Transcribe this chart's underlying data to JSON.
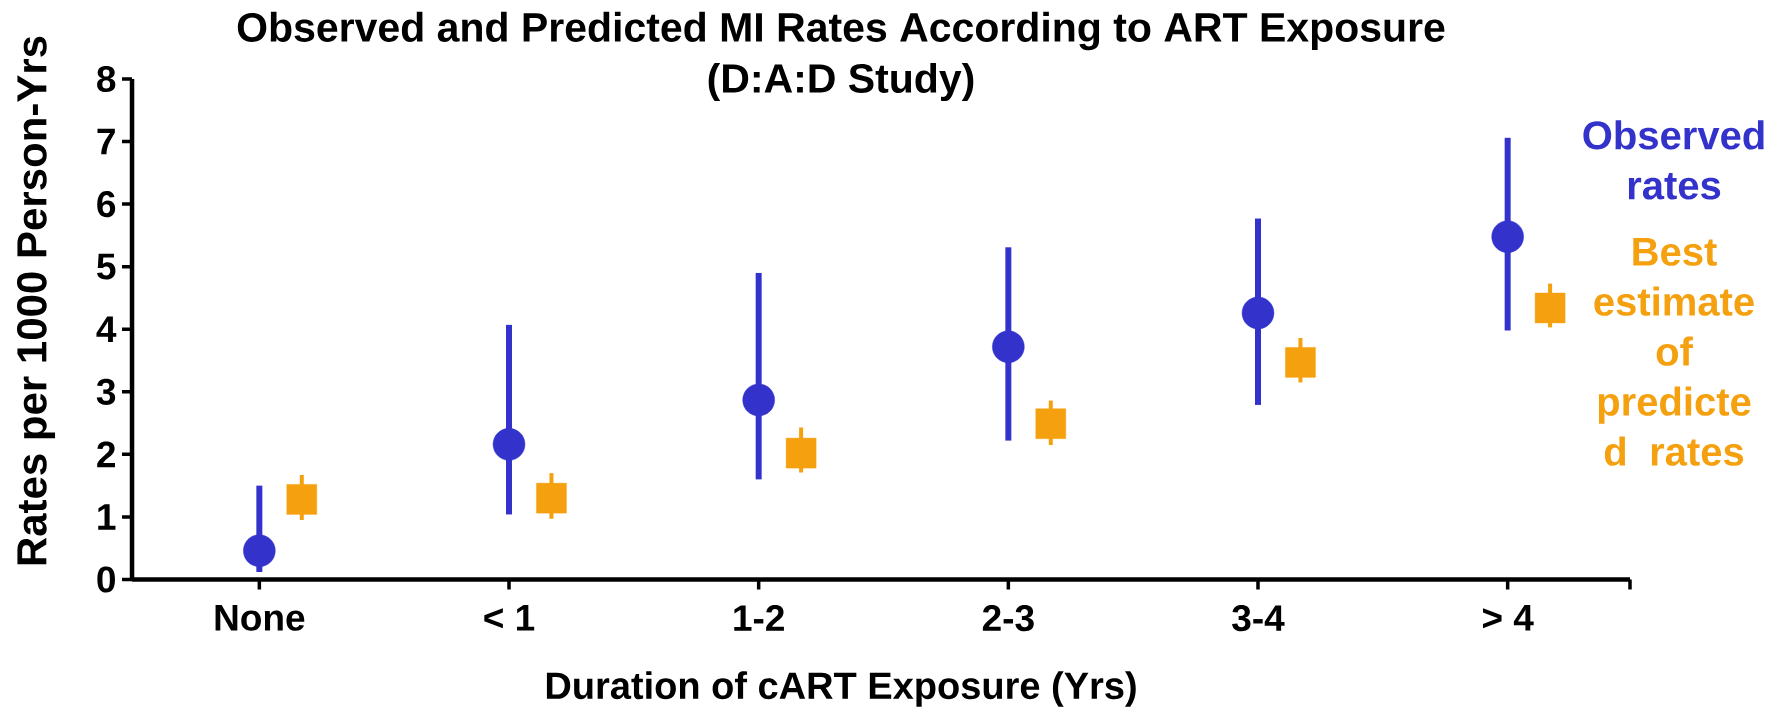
{
  "chart_data": {
    "type": "scatter",
    "title": "Observed and Predicted MI Rates According to ART Exposure",
    "subtitle": "(D:A:D Study)",
    "xlabel": "Duration of cART Exposure (Yrs)",
    "ylabel": "Rates per 1000 Person-Yrs",
    "categories": [
      "None",
      "< 1",
      "1-2",
      "2-3",
      "3-4",
      "> 4"
    ],
    "series": [
      {
        "name": "Observed rates",
        "color": "#3333cc",
        "marker": "circle",
        "values": [
          0.46,
          2.16,
          2.87,
          3.72,
          4.26,
          5.48
        ],
        "errors": [
          [
            0.12,
            1.5
          ],
          [
            1.04,
            4.07
          ],
          [
            1.6,
            4.9
          ],
          [
            2.22,
            5.31
          ],
          [
            2.79,
            5.77
          ],
          [
            3.98,
            7.06
          ]
        ]
      },
      {
        "name": "Best estimate of predicte d rates",
        "color": "#f5a00e",
        "marker": "square",
        "values": [
          1.28,
          1.3,
          2.02,
          2.49,
          3.47,
          4.34
        ],
        "errors": [
          [
            0.95,
            1.67
          ],
          [
            0.97,
            1.7
          ],
          [
            1.71,
            2.43
          ],
          [
            2.15,
            2.86
          ],
          [
            3.15,
            3.86
          ],
          [
            4.03,
            4.73
          ]
        ]
      }
    ],
    "ylim": [
      0,
      8
    ],
    "yticks": [
      0,
      1,
      2,
      3,
      4,
      5,
      6,
      7,
      8
    ],
    "grid": false,
    "legend": "right"
  }
}
